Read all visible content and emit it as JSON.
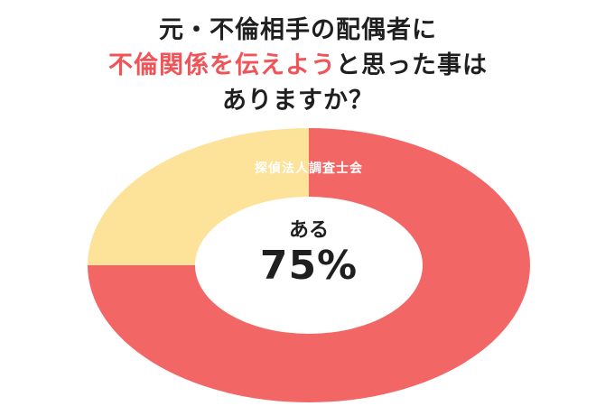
{
  "title": {
    "line1": "元・不倫相手の配偶者に",
    "line2_highlight": "不倫関係を伝えよう",
    "line2_rest": "と思った事は",
    "line3": "ありますか？"
  },
  "colors": {
    "highlight": "#ef5558",
    "slice_yes": "#f26666",
    "slice_no": "#fde29a",
    "text": "#1f1f1f"
  },
  "watermark": "探偵法人調査士会",
  "chart_data": {
    "type": "pie",
    "donut": true,
    "slices": [
      {
        "label": "ある",
        "value": 75,
        "color": "#f26666"
      },
      {
        "label": "",
        "value": 25,
        "color": "#fde29a"
      }
    ],
    "center": {
      "label": "ある",
      "value": "75%"
    }
  }
}
